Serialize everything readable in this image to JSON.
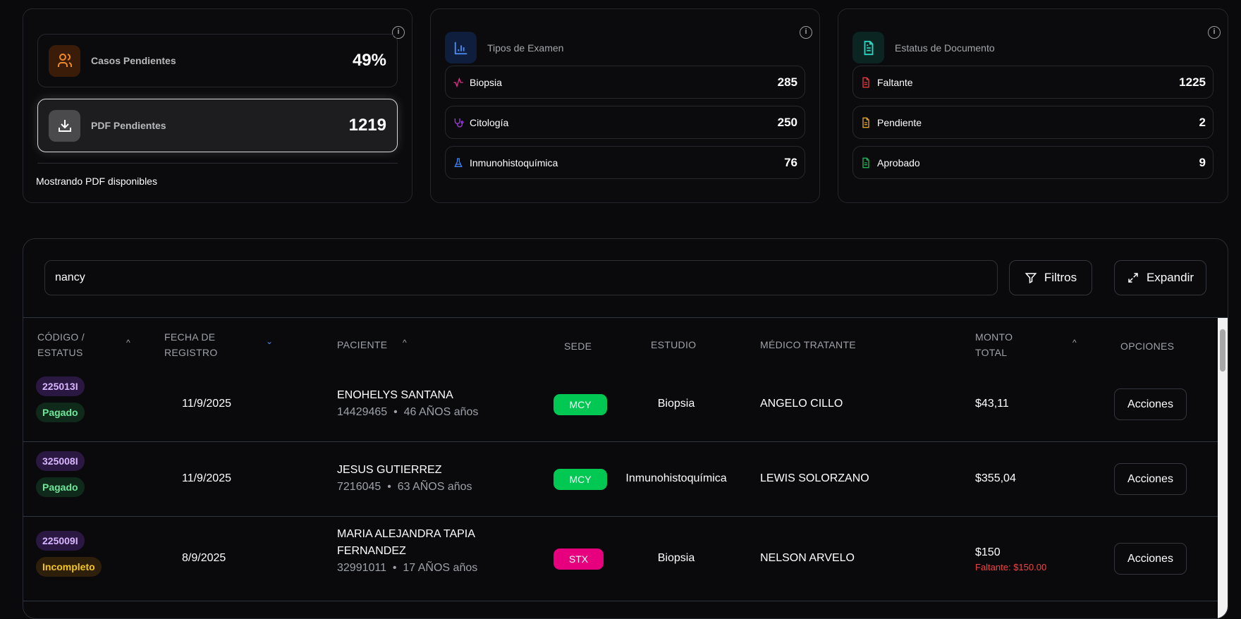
{
  "summary": {
    "casos": {
      "label": "Casos Pendientes",
      "value": "49%",
      "icon": "users-icon",
      "color": "#f0892a"
    },
    "pdf": {
      "label": "PDF Pendientes",
      "value": "1219",
      "icon": "download-icon"
    },
    "footer": "Mostrando PDF disponibles"
  },
  "exam_types": {
    "title": "Tipos de Examen",
    "icon": "bar-chart-icon",
    "items": [
      {
        "label": "Biopsia",
        "value": "285",
        "icon": "activity-icon",
        "color": "#e0338a"
      },
      {
        "label": "Citología",
        "value": "250",
        "icon": "stethoscope-icon",
        "color": "#9b3de0"
      },
      {
        "label": "Inmunohistoquímica",
        "value": "76",
        "icon": "flask-icon",
        "color": "#3b82f6"
      }
    ]
  },
  "doc_status": {
    "title": "Estatus de Documento",
    "icon": "file-text-icon",
    "items": [
      {
        "label": "Faltante",
        "value": "1225",
        "icon": "file-icon",
        "color": "#e5383b"
      },
      {
        "label": "Pendiente",
        "value": "2",
        "icon": "file-icon",
        "color": "#e0a526"
      },
      {
        "label": "Aprobado",
        "value": "9",
        "icon": "file-icon",
        "color": "#22b455"
      }
    ]
  },
  "toolbar": {
    "search_value": "nancy",
    "filters_label": "Filtros",
    "expand_label": "Expandir"
  },
  "table": {
    "columns": [
      "CÓDIGO / ESTATUS",
      "FECHA DE REGISTRO",
      "PACIENTE",
      "SEDE",
      "ESTUDIO",
      "MÉDICO TRATANTE",
      "MONTO TOTAL",
      "OPCIONES"
    ],
    "rows": [
      {
        "code": "225013I",
        "status": "Pagado",
        "date": "11/9/2025",
        "patient": "ENOHELYS SANTANA",
        "id": "14429465",
        "age": "46 AÑOS años",
        "sede": "MCY",
        "estudio": "Biopsia",
        "medico": "ANGELO CILLO",
        "monto": "$43,11",
        "faltante": "",
        "action": "Acciones"
      },
      {
        "code": "325008I",
        "status": "Pagado",
        "date": "11/9/2025",
        "patient": "JESUS GUTIERREZ",
        "id": "7216045",
        "age": "63 AÑOS años",
        "sede": "MCY",
        "estudio": "Inmunohistoquímica",
        "medico": "LEWIS SOLORZANO",
        "monto": "$355,04",
        "faltante": "",
        "action": "Acciones"
      },
      {
        "code": "225009I",
        "status": "Incompleto",
        "date": "8/9/2025",
        "patient": "MARIA ALEJANDRA TAPIA FERNANDEZ",
        "id": "32991011",
        "age": "17 AÑOS años",
        "sede": "STX",
        "estudio": "Biopsia",
        "medico": "NELSON ARVELO",
        "monto": "$150",
        "faltante": "Faltante: $150.00",
        "action": "Acciones"
      }
    ]
  },
  "colors": {
    "paid_bg": "#0f2a1a",
    "paid_fg": "#6ee79a",
    "incomplete_bg": "#2e1f0a",
    "incomplete_fg": "#f5c518",
    "mcy": "#00c853",
    "stx": "#e6007e"
  }
}
